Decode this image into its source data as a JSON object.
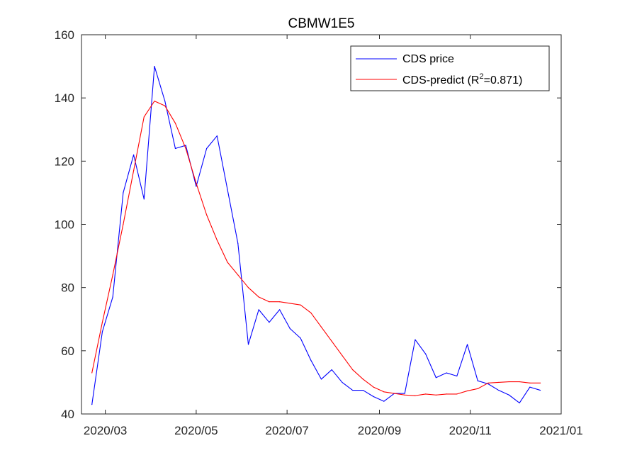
{
  "chart_data": {
    "type": "line",
    "title": "CBMW1E5",
    "xlabel": "",
    "ylabel": "",
    "xlim": [
      "2020-02-14",
      "2021-01-01"
    ],
    "ylim": [
      40,
      160
    ],
    "x_ticks": [
      "2020-03-01",
      "2020-05-01",
      "2020-07-01",
      "2020-09-01",
      "2020-11-01",
      "2021-01-01"
    ],
    "x_tick_labels": [
      "2020/03",
      "2020/05",
      "2020/07",
      "2020/09",
      "2020/11",
      "2021/01"
    ],
    "y_ticks": [
      40,
      60,
      80,
      100,
      120,
      140,
      160
    ],
    "y_tick_labels": [
      "40",
      "60",
      "80",
      "100",
      "120",
      "140",
      "160"
    ],
    "grid": false,
    "legend": {
      "placement": "top-right",
      "entries": [
        {
          "label": "CDS price",
          "series": 0
        },
        {
          "label_prefix": "CDS-predict (R",
          "label_sup": "2",
          "label_suffix": "=0.871)",
          "series": 1
        }
      ]
    },
    "series": [
      {
        "name": "CDS price",
        "color": "#0000ff",
        "x": [
          "2020-02-21",
          "2020-02-28",
          "2020-03-06",
          "2020-03-13",
          "2020-03-20",
          "2020-03-27",
          "2020-04-03",
          "2020-04-10",
          "2020-04-17",
          "2020-04-24",
          "2020-05-01",
          "2020-05-08",
          "2020-05-15",
          "2020-05-22",
          "2020-05-29",
          "2020-06-05",
          "2020-06-12",
          "2020-06-19",
          "2020-06-26",
          "2020-07-03",
          "2020-07-10",
          "2020-07-17",
          "2020-07-24",
          "2020-07-31",
          "2020-08-07",
          "2020-08-14",
          "2020-08-21",
          "2020-08-28",
          "2020-09-04",
          "2020-09-11",
          "2020-09-18",
          "2020-09-25",
          "2020-10-02",
          "2020-10-09",
          "2020-10-16",
          "2020-10-23",
          "2020-10-30",
          "2020-11-06",
          "2020-11-13",
          "2020-11-20",
          "2020-11-27",
          "2020-12-04",
          "2020-12-11",
          "2020-12-18"
        ],
        "values": [
          43,
          66,
          77,
          110,
          122,
          108,
          150,
          139,
          124,
          125,
          112,
          124,
          128,
          111,
          94,
          62,
          73,
          69,
          73,
          67,
          64,
          57,
          51,
          54,
          50,
          47.5,
          47.5,
          45.5,
          44,
          46.5,
          46.5,
          63.5,
          59,
          51.5,
          53,
          52,
          62,
          50.5,
          49.5,
          47.5,
          46,
          43.5,
          48.5,
          47.5
        ]
      },
      {
        "name": "CDS-predict (R2=0.871)",
        "color": "#ff0000",
        "x": [
          "2020-02-21",
          "2020-02-28",
          "2020-03-06",
          "2020-03-13",
          "2020-03-20",
          "2020-03-27",
          "2020-04-03",
          "2020-04-10",
          "2020-04-17",
          "2020-04-24",
          "2020-05-01",
          "2020-05-08",
          "2020-05-15",
          "2020-05-22",
          "2020-05-29",
          "2020-06-05",
          "2020-06-12",
          "2020-06-19",
          "2020-06-26",
          "2020-07-03",
          "2020-07-10",
          "2020-07-17",
          "2020-07-24",
          "2020-07-31",
          "2020-08-07",
          "2020-08-14",
          "2020-08-21",
          "2020-08-28",
          "2020-09-04",
          "2020-09-11",
          "2020-09-18",
          "2020-09-25",
          "2020-10-02",
          "2020-10-09",
          "2020-10-16",
          "2020-10-23",
          "2020-10-30",
          "2020-11-06",
          "2020-11-13",
          "2020-11-20",
          "2020-11-27",
          "2020-12-04",
          "2020-12-11",
          "2020-12-18"
        ],
        "values": [
          53,
          69,
          84,
          100,
          117,
          134,
          139,
          137.5,
          132,
          124,
          113,
          103,
          95,
          88,
          84,
          80,
          77,
          75.5,
          75.5,
          75,
          74.5,
          72,
          67.5,
          63,
          58.5,
          54,
          51,
          48.5,
          47,
          46.5,
          46,
          45.8,
          46.3,
          46,
          46.3,
          46.3,
          47.3,
          48,
          49.8,
          50,
          50.2,
          50.2,
          49.8,
          49.8
        ]
      }
    ]
  }
}
